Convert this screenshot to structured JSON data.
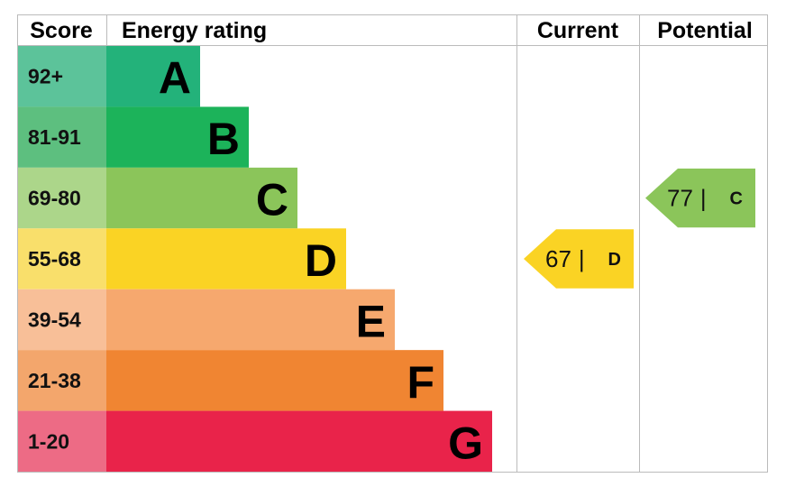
{
  "headers": {
    "score": "Score",
    "rating": "Energy rating",
    "current": "Current",
    "potential": "Potential"
  },
  "bands": [
    {
      "score": "92+",
      "letter": "A",
      "color": "#23b27a",
      "score_color": "#5cc39a"
    },
    {
      "score": "81-91",
      "letter": "B",
      "color": "#1cb35a",
      "score_color": "#5dbf7f"
    },
    {
      "score": "69-80",
      "letter": "C",
      "color": "#8bc55a",
      "score_color": "#acd68a"
    },
    {
      "score": "55-68",
      "letter": "D",
      "color": "#fad324",
      "score_color": "#f9df6b"
    },
    {
      "score": "39-54",
      "letter": "E",
      "color": "#f6a86e",
      "score_color": "#f8bf98"
    },
    {
      "score": "21-38",
      "letter": "F",
      "color": "#f08532",
      "score_color": "#f3a66c"
    },
    {
      "score": "1-20",
      "letter": "G",
      "color": "#e9234a",
      "score_color": "#ed6b85"
    }
  ],
  "separator": "|",
  "current": {
    "value": 67,
    "rating": "D"
  },
  "potential": {
    "value": 77,
    "rating": "C"
  }
}
